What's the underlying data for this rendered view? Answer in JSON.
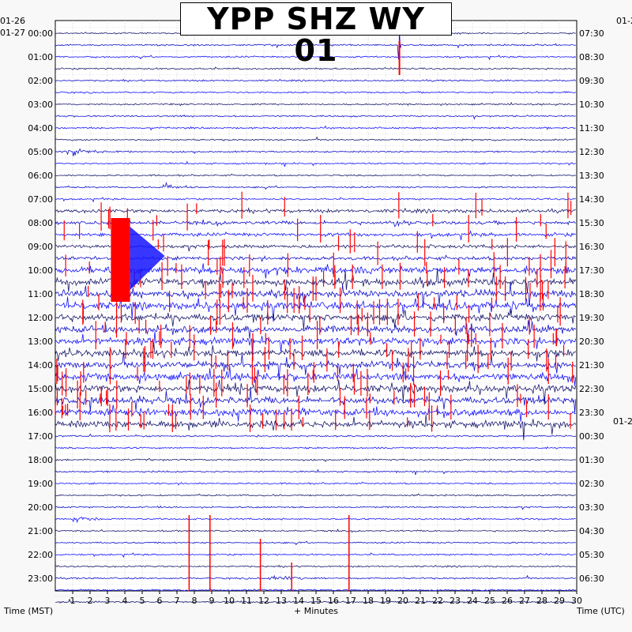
{
  "chart_data": {
    "type": "line",
    "title": "YPP SHZ WY 01",
    "xlabel": "+ Minutes",
    "left_axis_title": "Time (MST)",
    "right_axis_title": "Time (UTC)",
    "left_date_start": "01-26",
    "left_date_next": "01-27",
    "right_date_start": "01-2",
    "right_date_next": "01-2",
    "xlim": [
      0,
      30
    ],
    "x_ticks": [
      "1",
      "2",
      "3",
      "4",
      "5",
      "6",
      "7",
      "8",
      "9",
      "10",
      "11",
      "12",
      "13",
      "14",
      "15",
      "16",
      "17",
      "18",
      "19",
      "20",
      "21",
      "22",
      "23",
      "24",
      "25",
      "26",
      "27",
      "28",
      "29",
      "30"
    ],
    "left_hour_labels": [
      "00:00",
      "01:00",
      "02:00",
      "03:00",
      "04:00",
      "05:00",
      "06:00",
      "07:00",
      "08:00",
      "09:00",
      "10:00",
      "11:00",
      "12:00",
      "13:00",
      "14:00",
      "15:00",
      "16:00",
      "17:00",
      "18:00",
      "19:00",
      "20:00",
      "21:00",
      "22:00",
      "23:00"
    ],
    "right_hour_labels": [
      "07:30",
      "08:30",
      "09:30",
      "10:30",
      "11:30",
      "12:30",
      "13:30",
      "14:30",
      "15:30",
      "16:30",
      "17:30",
      "18:30",
      "19:30",
      "20:30",
      "21:30",
      "22:30",
      "23:30",
      "00:30",
      "01:30",
      "02:30",
      "03:30",
      "04:30",
      "05:30",
      "06:30"
    ],
    "traces_per_hour": 2,
    "trace_count": 49,
    "trace_colors": [
      "#1a1a6e",
      "#1010cc",
      "#1414ff"
    ],
    "clip_color": "#ff0000",
    "grid": true,
    "activity_windows": [
      {
        "hours": [
          0,
          7.5
        ],
        "level": "low"
      },
      {
        "hours": [
          7.5,
          10
        ],
        "level": "moderate"
      },
      {
        "hours": [
          10,
          17
        ],
        "level": "high"
      },
      {
        "hours": [
          17,
          24
        ],
        "level": "low"
      }
    ],
    "events": [
      {
        "hour": 0.5,
        "minute": 19.8,
        "type": "spike"
      },
      {
        "hour": 5.0,
        "minute": 1.0,
        "type": "burst"
      },
      {
        "hour": 6.5,
        "minute": 6.5,
        "type": "burst"
      },
      {
        "hour": 8.0,
        "minute": 19.8,
        "type": "burst"
      },
      {
        "hour": 9.0,
        "minute": 3.8,
        "type": "clipped_large"
      },
      {
        "hour": 20.5,
        "minute": 1.3,
        "type": "burst"
      },
      {
        "hour": 23.0,
        "minute": 12.5,
        "type": "burst"
      }
    ]
  }
}
